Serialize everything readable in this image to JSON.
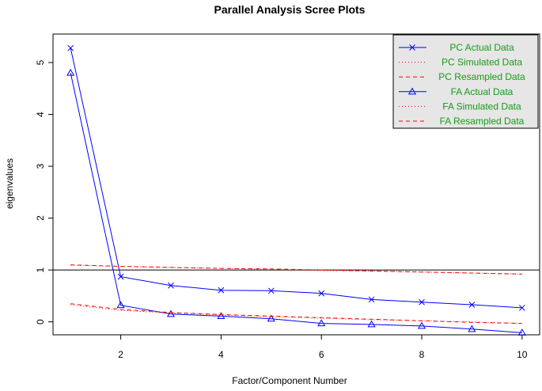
{
  "chart_data": {
    "type": "line",
    "title": "Parallel Analysis Scree Plots",
    "xlabel": "Factor/Component Number",
    "ylabel": "eigenvalues",
    "xlim": [
      0.65,
      10.35
    ],
    "ylim": [
      -0.25,
      5.55
    ],
    "xticks": [
      2,
      4,
      6,
      8,
      10
    ],
    "yticks": [
      0,
      1,
      2,
      3,
      4,
      5
    ],
    "reference_line": 1,
    "grid": false,
    "legend_position": "top-right",
    "x": [
      1,
      2,
      3,
      4,
      5,
      6,
      7,
      8,
      9,
      10
    ],
    "series": [
      {
        "name": "PC  Actual Data",
        "values": [
          5.28,
          0.87,
          0.7,
          0.61,
          0.6,
          0.55,
          0.43,
          0.38,
          0.33,
          0.27
        ],
        "color": "#0000ff",
        "style": "solid",
        "marker": "x"
      },
      {
        "name": "PC  Simulated Data",
        "values": [
          1.09,
          1.07,
          1.05,
          1.03,
          1.01,
          0.99,
          0.98,
          0.96,
          0.94,
          0.92
        ],
        "color": "#ff0000",
        "style": "dotted",
        "marker": "none"
      },
      {
        "name": "PC  Resampled Data",
        "values": [
          1.1,
          1.07,
          1.05,
          1.03,
          1.02,
          1.0,
          0.98,
          0.96,
          0.94,
          0.92
        ],
        "color": "#ff0000",
        "style": "dashed",
        "marker": "none"
      },
      {
        "name": "FA  Actual Data",
        "values": [
          4.8,
          0.32,
          0.15,
          0.11,
          0.06,
          -0.03,
          -0.05,
          -0.08,
          -0.14,
          -0.21
        ],
        "color": "#0000ff",
        "style": "solid",
        "marker": "triangle"
      },
      {
        "name": "FA  Simulated Data",
        "values": [
          0.33,
          0.22,
          0.17,
          0.13,
          0.1,
          0.07,
          0.04,
          0.02,
          0.0,
          -0.03
        ],
        "color": "#ff0000",
        "style": "dotted",
        "marker": "none"
      },
      {
        "name": "FA  Resampled Data",
        "values": [
          0.35,
          0.24,
          0.18,
          0.14,
          0.11,
          0.08,
          0.05,
          0.02,
          -0.01,
          -0.03
        ],
        "color": "#ff0000",
        "style": "dashed",
        "marker": "none"
      }
    ],
    "legend_background": "#e6e6e6",
    "legend_text_color": "#1a9a1a"
  }
}
